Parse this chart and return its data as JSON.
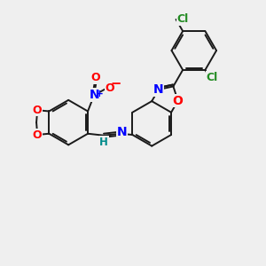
{
  "background_color": "#efefef",
  "bond_color": "#1a1a1a",
  "bond_width": 1.4,
  "atom_colors": {
    "O": "#ff0000",
    "N": "#0000ff",
    "Cl": "#228b22",
    "H": "#008b8b",
    "C": "#1a1a1a"
  },
  "font_size": 8.5,
  "fig_width": 3.0,
  "fig_height": 3.0
}
